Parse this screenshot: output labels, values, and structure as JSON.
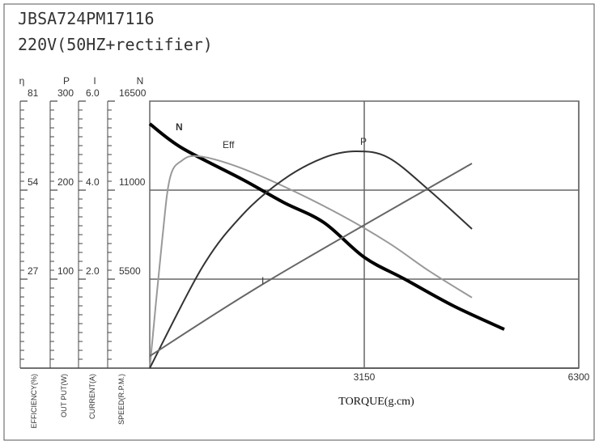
{
  "chart_data": {
    "type": "line",
    "title": "JBSA724PM17116",
    "subtitle": "220V(50HZ+rectifier)",
    "x_label": "TORQUE(g.cm)",
    "xlim": [
      0,
      6300
    ],
    "xticks": [
      3150,
      6300
    ],
    "grid": true,
    "y_axes": [
      {
        "symbol": "η",
        "label": "EFFICIENCY(%)",
        "ylim": [
          0,
          81
        ],
        "yticks": [
          27,
          54,
          81
        ]
      },
      {
        "symbol": "P",
        "label": "OUT PUT(W)",
        "ylim": [
          0,
          300
        ],
        "yticks": [
          100,
          200,
          300
        ]
      },
      {
        "symbol": "I",
        "label": "CURRENT(A)",
        "ylim": [
          0,
          6
        ],
        "yticks": [
          {
            "value": 2,
            "label": "2.0"
          },
          {
            "value": 4,
            "label": "4.0"
          },
          {
            "value": 6,
            "label": "6.0"
          }
        ]
      },
      {
        "symbol": "N",
        "label": "SPEED(R.P.M.)",
        "ylim": [
          0,
          16500
        ],
        "yticks": [
          5500,
          11000,
          16500
        ]
      }
    ],
    "series": [
      {
        "name": "N",
        "axis": "N",
        "color": "#000000",
        "x": [
          0,
          475,
          1367,
          1961,
          2556,
          3150,
          3744,
          4458,
          5206
        ],
        "values": [
          15100,
          13600,
          11650,
          10250,
          9000,
          6850,
          5500,
          3850,
          2400
        ]
      },
      {
        "name": "Eff",
        "axis": "η",
        "color": "#999999",
        "x": [
          0,
          178,
          297,
          475,
          713,
          1248,
          1961,
          2793,
          3507,
          4101,
          4731
        ],
        "values": [
          0,
          38,
          57.7,
          63,
          64.3,
          61.4,
          55.2,
          46.6,
          38,
          29.5,
          21.4
        ]
      },
      {
        "name": "P",
        "axis": "P",
        "color": "#333333",
        "x": [
          0,
          773,
          1367,
          1961,
          2556,
          3031,
          3507,
          4101,
          4731
        ],
        "values": [
          0,
          113.6,
          172.7,
          211.8,
          236.4,
          243.6,
          236.4,
          200,
          156.4
        ]
      },
      {
        "name": "I",
        "axis": "I",
        "color": "#666666",
        "x": [
          0,
          1783,
          4731
        ],
        "values": [
          0.27,
          2.0,
          4.6
        ]
      }
    ]
  }
}
